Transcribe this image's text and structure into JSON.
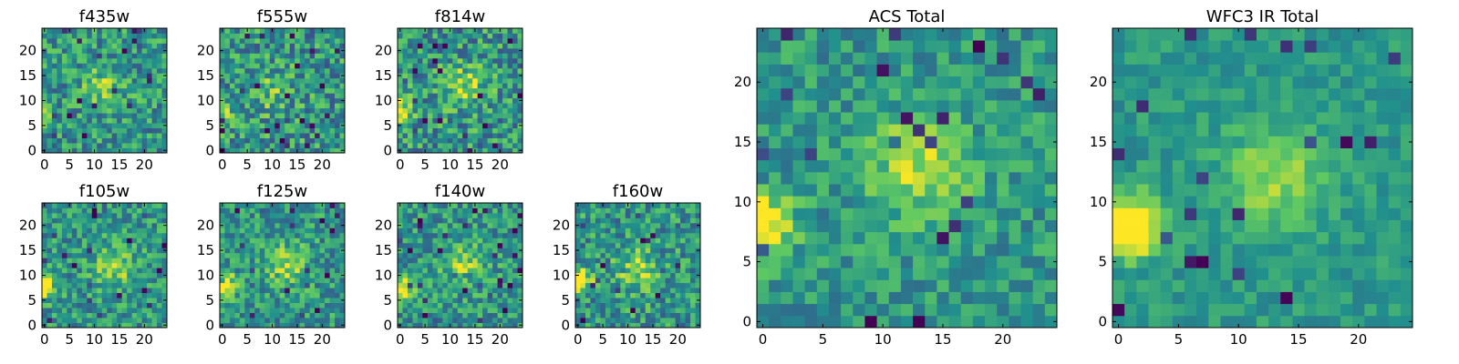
{
  "figure": {
    "colormap": [
      "#440154",
      "#3b528b",
      "#21908d",
      "#5dc863",
      "#fde725"
    ]
  },
  "chart_data": [
    {
      "type": "heatmap",
      "title": "f435w",
      "x_ticks": [
        "0",
        "5",
        "10",
        "15",
        "20"
      ],
      "y_ticks": [
        "0",
        "5",
        "10",
        "15",
        "20"
      ],
      "xlim": [
        -0.5,
        24.5
      ],
      "ylim": [
        -0.5,
        24.5
      ],
      "grid_size": 25,
      "bright_spot": [
        12,
        13
      ],
      "bright_strength": 0.25,
      "edge_spot": [
        0,
        7
      ],
      "edge_strength": 0.15,
      "noise": 0.5,
      "seed": 11
    },
    {
      "type": "heatmap",
      "title": "f555w",
      "x_ticks": [
        "0",
        "5",
        "10",
        "15",
        "20"
      ],
      "y_ticks": [
        "0",
        "5",
        "10",
        "15",
        "20"
      ],
      "xlim": [
        -0.5,
        24.5
      ],
      "ylim": [
        -0.5,
        24.5
      ],
      "grid_size": 25,
      "bright_spot": [
        10,
        12
      ],
      "bright_strength": 0.2,
      "edge_spot": [
        0,
        7
      ],
      "edge_strength": 0.35,
      "noise": 0.55,
      "seed": 23
    },
    {
      "type": "heatmap",
      "title": "f814w",
      "x_ticks": [
        "0",
        "5",
        "10",
        "15",
        "20"
      ],
      "y_ticks": [
        "0",
        "5",
        "10",
        "15",
        "20"
      ],
      "xlim": [
        -0.5,
        24.5
      ],
      "ylim": [
        -0.5,
        24.5
      ],
      "grid_size": 25,
      "bright_spot": [
        13,
        13
      ],
      "bright_strength": 0.3,
      "edge_spot": [
        0,
        8
      ],
      "edge_strength": 0.45,
      "noise": 0.55,
      "seed": 37
    },
    {
      "type": "heatmap",
      "title": "f105w",
      "x_ticks": [
        "0",
        "5",
        "10",
        "15",
        "20"
      ],
      "y_ticks": [
        "0",
        "5",
        "10",
        "15",
        "20"
      ],
      "xlim": [
        -0.5,
        24.5
      ],
      "ylim": [
        -0.5,
        24.5
      ],
      "grid_size": 25,
      "bright_spot": [
        14,
        12
      ],
      "bright_strength": 0.3,
      "edge_spot": [
        0,
        8
      ],
      "edge_strength": 0.6,
      "noise": 0.45,
      "seed": 41
    },
    {
      "type": "heatmap",
      "title": "f125w",
      "x_ticks": [
        "0",
        "5",
        "10",
        "15",
        "20"
      ],
      "y_ticks": [
        "0",
        "5",
        "10",
        "15",
        "20"
      ],
      "xlim": [
        -0.5,
        24.5
      ],
      "ylim": [
        -0.5,
        24.5
      ],
      "grid_size": 25,
      "bright_spot": [
        13,
        12
      ],
      "bright_strength": 0.3,
      "edge_spot": [
        0,
        8
      ],
      "edge_strength": 0.6,
      "noise": 0.45,
      "seed": 53
    },
    {
      "type": "heatmap",
      "title": "f140w",
      "x_ticks": [
        "0",
        "5",
        "10",
        "15",
        "20"
      ],
      "y_ticks": [
        "0",
        "5",
        "10",
        "15",
        "20"
      ],
      "xlim": [
        -0.5,
        24.5
      ],
      "ylim": [
        -0.5,
        24.5
      ],
      "grid_size": 25,
      "bright_spot": [
        13,
        12
      ],
      "bright_strength": 0.3,
      "edge_spot": [
        0,
        7
      ],
      "edge_strength": 0.6,
      "noise": 0.45,
      "seed": 67
    },
    {
      "type": "heatmap",
      "title": "f160w",
      "x_ticks": [
        "0",
        "5",
        "10",
        "15",
        "20"
      ],
      "y_ticks": [
        "0",
        "5",
        "10",
        "15",
        "20"
      ],
      "xlim": [
        -0.5,
        24.5
      ],
      "ylim": [
        -0.5,
        24.5
      ],
      "grid_size": 25,
      "bright_spot": [
        12,
        11
      ],
      "bright_strength": 0.3,
      "edge_spot": [
        0,
        9
      ],
      "edge_strength": 0.65,
      "noise": 0.5,
      "seed": 79
    },
    {
      "type": "heatmap",
      "title": "ACS Total",
      "x_ticks": [
        "0",
        "5",
        "10",
        "15",
        "20"
      ],
      "y_ticks": [
        "0",
        "5",
        "10",
        "15",
        "20"
      ],
      "xlim": [
        -0.5,
        24.5
      ],
      "ylim": [
        -0.5,
        24.5
      ],
      "grid_size": 25,
      "bright_spot": [
        13,
        13
      ],
      "bright_strength": 0.35,
      "edge_spot": [
        0,
        8
      ],
      "edge_strength": 0.6,
      "noise": 0.35,
      "seed": 97
    },
    {
      "type": "heatmap",
      "title": "WFC3 IR Total",
      "x_ticks": [
        "0",
        "5",
        "10",
        "15",
        "20"
      ],
      "y_ticks": [
        "0",
        "5",
        "10",
        "15",
        "20"
      ],
      "xlim": [
        -0.5,
        24.5
      ],
      "ylim": [
        -0.5,
        24.5
      ],
      "grid_size": 25,
      "bright_spot": [
        13,
        12
      ],
      "bright_strength": 0.3,
      "edge_spot": [
        1,
        8
      ],
      "edge_strength": 0.75,
      "noise": 0.22,
      "seed": 113
    }
  ]
}
